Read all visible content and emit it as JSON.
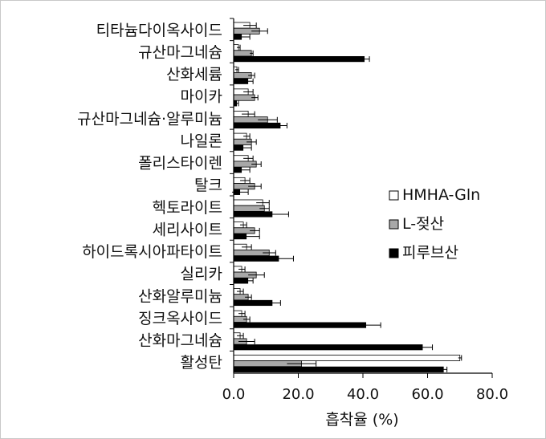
{
  "chart_data": {
    "type": "bar",
    "orientation": "horizontal",
    "categories": [
      "티타늄다이옥사이드",
      "규산마그네슘",
      "산화세륨",
      "마이카",
      "규산마그네슘·알루미늄",
      "나일론",
      "폴리스타이렌",
      "탈크",
      "헥토라이트",
      "세리사이트",
      "하이드록시아파타이트",
      "실리카",
      "산화알루미늄",
      "징크옥사이드",
      "산화마그네슘",
      "활성탄"
    ],
    "series": [
      {
        "name": "HMHA-Gln",
        "color": "#ffffff",
        "values": [
          5.0,
          1.5,
          1.0,
          4.5,
          4.5,
          4.0,
          4.5,
          3.5,
          9.0,
          3.0,
          4.0,
          2.5,
          2.0,
          2.5,
          2.0,
          70.0
        ],
        "errors": [
          2.0,
          0.5,
          0.5,
          1.5,
          2.0,
          1.0,
          1.5,
          1.5,
          2.0,
          1.0,
          1.5,
          1.0,
          1.0,
          1.0,
          1.0,
          0.5
        ]
      },
      {
        "name": "L-젖산",
        "color": "#a8a8a8",
        "values": [
          8.0,
          5.5,
          5.5,
          6.5,
          10.5,
          5.5,
          7.0,
          6.5,
          9.5,
          6.5,
          11.0,
          7.0,
          4.5,
          4.0,
          4.0,
          21.0
        ],
        "errors": [
          2.5,
          0.5,
          1.0,
          1.0,
          3.0,
          1.5,
          1.5,
          2.0,
          1.5,
          1.5,
          2.0,
          2.5,
          1.0,
          1.0,
          2.5,
          4.5
        ]
      },
      {
        "name": "피루브산",
        "color": "#000000",
        "values": [
          2.5,
          40.5,
          4.5,
          1.0,
          14.5,
          3.0,
          2.5,
          2.0,
          12.0,
          4.0,
          14.0,
          4.5,
          12.0,
          41.0,
          58.5,
          65.0
        ],
        "errors": [
          2.5,
          1.5,
          1.5,
          0.5,
          2.0,
          2.5,
          2.5,
          2.5,
          5.0,
          4.0,
          4.5,
          1.5,
          2.5,
          4.5,
          3.0,
          1.0
        ]
      }
    ],
    "xlabel": "흡착율 (%)",
    "xlim": [
      0,
      80
    ],
    "xticks": [
      "0.0",
      "20.0",
      "40.0",
      "60.0",
      "80.0"
    ],
    "grid": false,
    "legend_position": "right"
  }
}
